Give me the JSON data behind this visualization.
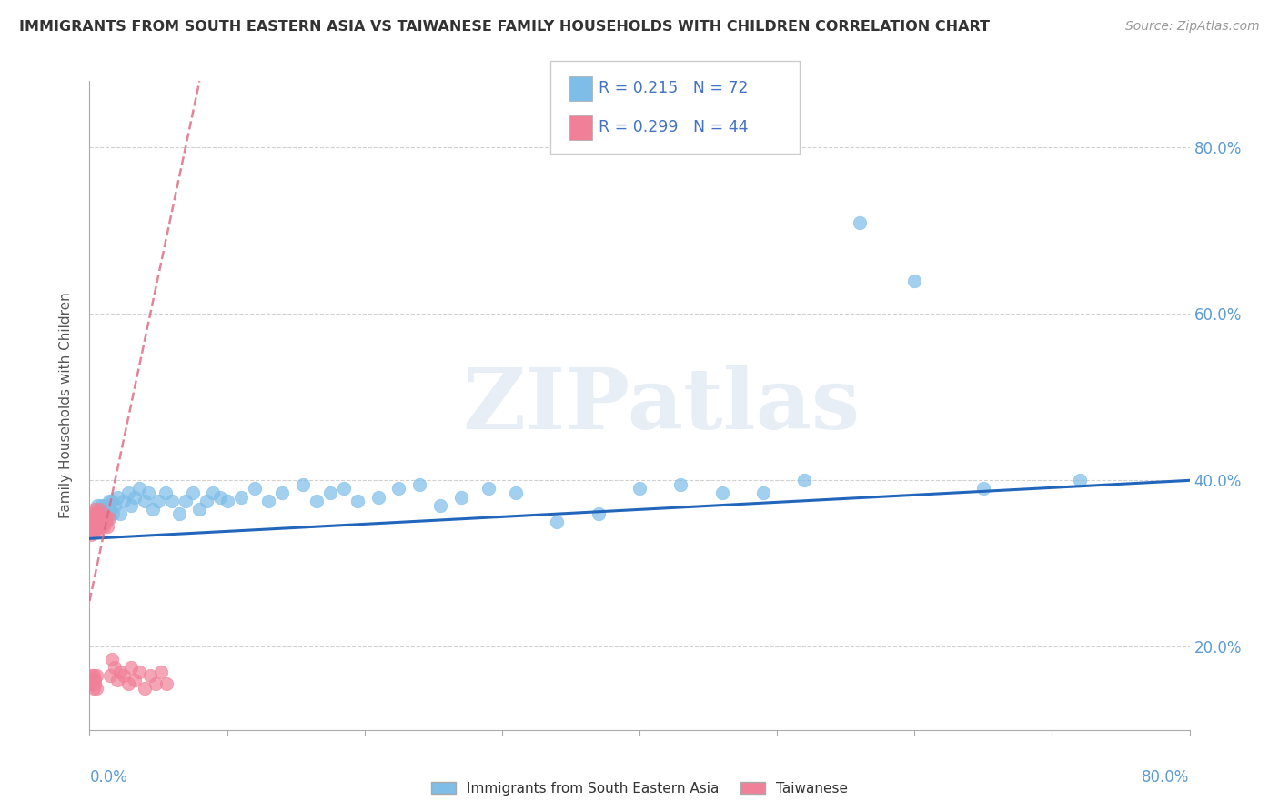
{
  "title": "IMMIGRANTS FROM SOUTH EASTERN ASIA VS TAIWANESE FAMILY HOUSEHOLDS WITH CHILDREN CORRELATION CHART",
  "source": "Source: ZipAtlas.com",
  "ylabel": "Family Households with Children",
  "ytick_vals": [
    0.2,
    0.4,
    0.6,
    0.8
  ],
  "xlim": [
    0.0,
    0.8
  ],
  "ylim": [
    0.1,
    0.88
  ],
  "legend1_R": "0.215",
  "legend1_N": "72",
  "legend2_R": "0.299",
  "legend2_N": "44",
  "blue_color": "#7dbde8",
  "pink_color": "#f08098",
  "trend_blue": "#2266bb",
  "trend_pink": "#dd6680",
  "watermark": "ZIPatlas",
  "legend_label1": "Immigrants from South Eastern Asia",
  "legend_label2": "Taiwanese",
  "blue_scatter_x": [
    0.003,
    0.004,
    0.005,
    0.005,
    0.006,
    0.006,
    0.007,
    0.007,
    0.008,
    0.008,
    0.009,
    0.01,
    0.01,
    0.011,
    0.011,
    0.012,
    0.012,
    0.013,
    0.014,
    0.014,
    0.015,
    0.016,
    0.017,
    0.018,
    0.02,
    0.022,
    0.025,
    0.028,
    0.03,
    0.033,
    0.036,
    0.04,
    0.043,
    0.046,
    0.05,
    0.055,
    0.06,
    0.065,
    0.07,
    0.075,
    0.08,
    0.085,
    0.09,
    0.095,
    0.1,
    0.11,
    0.12,
    0.13,
    0.14,
    0.155,
    0.165,
    0.175,
    0.185,
    0.195,
    0.21,
    0.225,
    0.24,
    0.255,
    0.27,
    0.29,
    0.31,
    0.34,
    0.37,
    0.4,
    0.43,
    0.46,
    0.49,
    0.52,
    0.56,
    0.6,
    0.65,
    0.72
  ],
  "blue_scatter_y": [
    0.35,
    0.34,
    0.36,
    0.345,
    0.37,
    0.355,
    0.345,
    0.36,
    0.355,
    0.37,
    0.365,
    0.35,
    0.36,
    0.37,
    0.355,
    0.365,
    0.35,
    0.36,
    0.375,
    0.36,
    0.365,
    0.375,
    0.36,
    0.37,
    0.38,
    0.36,
    0.375,
    0.385,
    0.37,
    0.38,
    0.39,
    0.375,
    0.385,
    0.365,
    0.375,
    0.385,
    0.375,
    0.36,
    0.375,
    0.385,
    0.365,
    0.375,
    0.385,
    0.38,
    0.375,
    0.38,
    0.39,
    0.375,
    0.385,
    0.395,
    0.375,
    0.385,
    0.39,
    0.375,
    0.38,
    0.39,
    0.395,
    0.37,
    0.38,
    0.39,
    0.385,
    0.35,
    0.36,
    0.39,
    0.395,
    0.385,
    0.385,
    0.4,
    0.71,
    0.64,
    0.39,
    0.4
  ],
  "pink_scatter_x": [
    0.001,
    0.001,
    0.002,
    0.002,
    0.002,
    0.003,
    0.003,
    0.003,
    0.004,
    0.004,
    0.004,
    0.005,
    0.005,
    0.005,
    0.006,
    0.006,
    0.006,
    0.007,
    0.007,
    0.008,
    0.008,
    0.009,
    0.009,
    0.01,
    0.01,
    0.011,
    0.012,
    0.013,
    0.014,
    0.015,
    0.016,
    0.018,
    0.02,
    0.022,
    0.025,
    0.028,
    0.03,
    0.033,
    0.036,
    0.04,
    0.044,
    0.048,
    0.052,
    0.056
  ],
  "pink_scatter_y": [
    0.335,
    0.35,
    0.34,
    0.36,
    0.355,
    0.345,
    0.36,
    0.355,
    0.34,
    0.355,
    0.365,
    0.35,
    0.36,
    0.345,
    0.355,
    0.34,
    0.36,
    0.35,
    0.365,
    0.355,
    0.345,
    0.35,
    0.355,
    0.345,
    0.36,
    0.35,
    0.355,
    0.345,
    0.355,
    0.165,
    0.185,
    0.175,
    0.16,
    0.17,
    0.165,
    0.155,
    0.175,
    0.16,
    0.17,
    0.15,
    0.165,
    0.155,
    0.17,
    0.155
  ],
  "pink_extra_y_low": [
    0.155,
    0.16,
    0.165,
    0.15,
    0.165,
    0.155,
    0.16,
    0.15,
    0.165
  ],
  "pink_extra_x_low": [
    0.001,
    0.002,
    0.002,
    0.003,
    0.003,
    0.004,
    0.004,
    0.005,
    0.005
  ]
}
